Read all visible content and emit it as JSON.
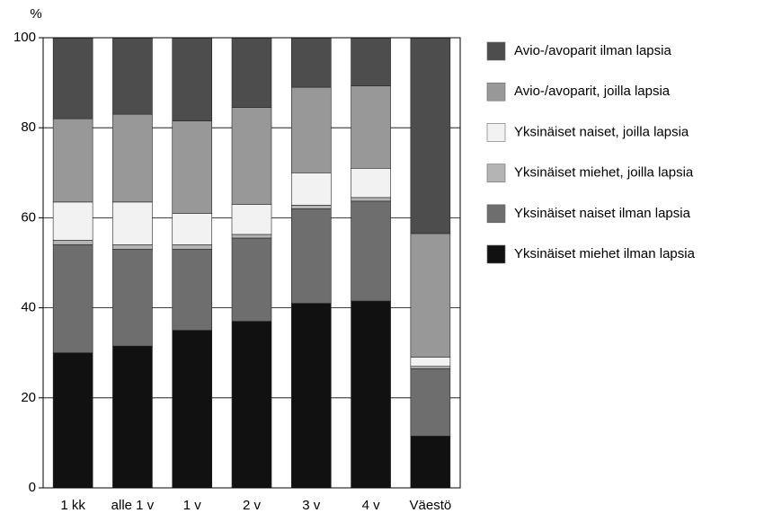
{
  "chart_data": {
    "type": "stacked_bar",
    "y_label": "%",
    "categories": [
      "1 kk",
      "alle 1 v",
      "1 v",
      "2 v",
      "3 v",
      "4 v",
      "Väestö"
    ],
    "series": [
      {
        "name": "Yksinäiset miehet ilman lapsia",
        "color": "#111111",
        "values": [
          30,
          31.5,
          35,
          37,
          41,
          41.5,
          11.5
        ]
      },
      {
        "name": "Yksinäiset naiset ilman lapsia",
        "color": "#6e6e6e",
        "values": [
          24,
          21.5,
          18,
          18.5,
          21,
          22.2,
          15
        ]
      },
      {
        "name": "Yksinäiset miehet, joilla lapsia",
        "color": "#b4b4b4",
        "values": [
          1,
          1,
          1,
          0.8,
          0.8,
          0.8,
          0.5
        ]
      },
      {
        "name": "Yksinäiset naiset, joilla lapsia",
        "color": "#f2f2f2",
        "values": [
          8.5,
          9.5,
          7,
          6.7,
          7.2,
          6.5,
          2
        ]
      },
      {
        "name": "Avio-/avoparit, joilla lapsia",
        "color": "#989898",
        "values": [
          18.5,
          19.5,
          20.5,
          21.5,
          19,
          18.3,
          27.5
        ]
      },
      {
        "name": "Avio-/avoparit ilman lapsia",
        "color": "#4d4d4d",
        "values": [
          18,
          17,
          18.5,
          15.5,
          11,
          10.7,
          43.5
        ]
      }
    ],
    "ylim": [
      0,
      100
    ],
    "yticks": [
      0,
      20,
      40,
      60,
      80,
      100
    ],
    "grid": true
  }
}
